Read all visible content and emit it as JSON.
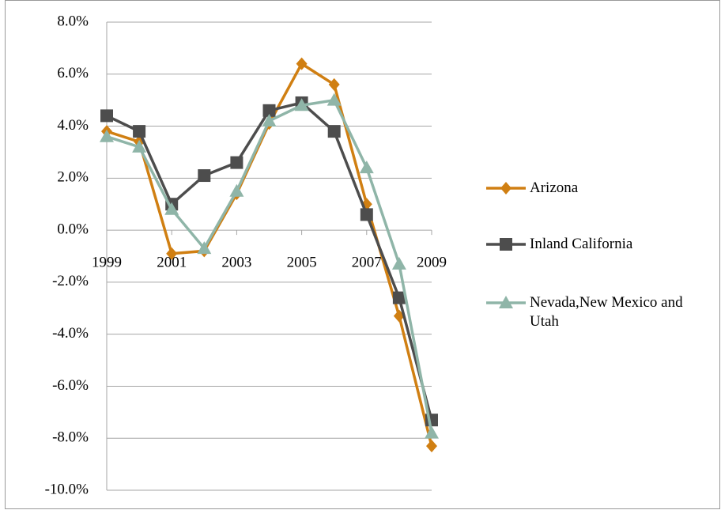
{
  "chart_data": {
    "type": "line",
    "x": [
      1999,
      2000,
      2001,
      2002,
      2003,
      2004,
      2005,
      2006,
      2007,
      2008,
      2009
    ],
    "xlim": [
      1999,
      2009
    ],
    "xticks": [
      1999,
      2001,
      2003,
      2005,
      2007,
      2009
    ],
    "ylim": [
      -10,
      8
    ],
    "yticks": [
      {
        "value": -10,
        "label": "-10.0%"
      },
      {
        "value": -8,
        "label": "-8.0%"
      },
      {
        "value": -6,
        "label": "-6.0%"
      },
      {
        "value": -4,
        "label": "-4.0%"
      },
      {
        "value": -2,
        "label": "-2.0%"
      },
      {
        "value": 0,
        "label": "0.0%"
      },
      {
        "value": 2,
        "label": "2.0%"
      },
      {
        "value": 4,
        "label": "4.0%"
      },
      {
        "value": 6,
        "label": "6.0%"
      },
      {
        "value": 8,
        "label": "8.0%"
      }
    ],
    "grid": true,
    "legend": "right",
    "series": [
      {
        "name": "Arizona",
        "color": "#d07f12",
        "marker": "diamond",
        "values": [
          3.8,
          3.4,
          -0.9,
          -0.8,
          1.4,
          4.1,
          6.4,
          5.6,
          1.0,
          -3.3,
          -8.3
        ]
      },
      {
        "name": "Inland California",
        "color": "#4d4d4d",
        "marker": "square",
        "values": [
          4.4,
          3.8,
          1.0,
          2.1,
          2.6,
          4.6,
          4.9,
          3.8,
          0.6,
          -2.6,
          -7.3
        ]
      },
      {
        "name": "Nevada,New Mexico and Utah",
        "color": "#8fb5a8",
        "marker": "triangle",
        "values": [
          3.6,
          3.2,
          0.8,
          -0.7,
          1.5,
          4.2,
          4.8,
          5.0,
          2.4,
          -1.3,
          -7.8
        ]
      }
    ]
  }
}
